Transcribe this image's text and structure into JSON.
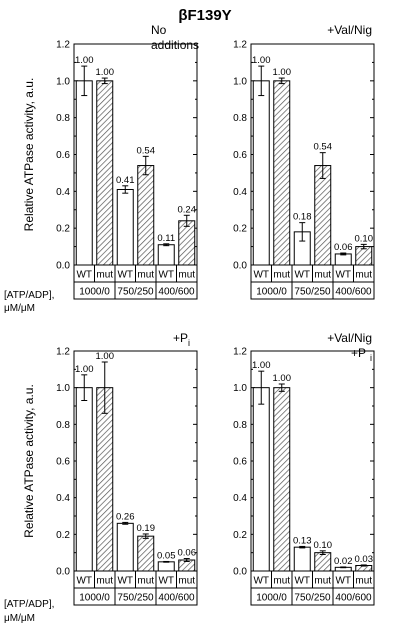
{
  "figure_title": "βF139Y",
  "row_labels": {
    "line1": "[ATP/ADP],",
    "line2": "μM/μM"
  },
  "colors": {
    "wt_fill": "#ffffff",
    "mut_hatch": "#555555",
    "stroke": "#000000"
  },
  "chart_data": [
    {
      "type": "bar",
      "annotation": [
        "No",
        "additions"
      ],
      "ylabel": "Relative ATPase activity, a.u.",
      "ylim": [
        0,
        1.2
      ],
      "yticks": [
        "0.0",
        "0.2",
        "0.4",
        "0.6",
        "0.8",
        "1.0",
        "1.2"
      ],
      "categories": [
        "WT",
        "mut",
        "WT",
        "mut",
        "WT",
        "mut"
      ],
      "groups": [
        "1000/0",
        "750/250",
        "400/600"
      ],
      "values": [
        1.0,
        1.0,
        0.41,
        0.54,
        0.11,
        0.24
      ],
      "errors": [
        0.08,
        0.015,
        0.02,
        0.05,
        0.005,
        0.03
      ],
      "labels": [
        "1.00",
        "1.00",
        "0.41",
        "0.54",
        "0.11",
        "0.24"
      ]
    },
    {
      "type": "bar",
      "annotation": [
        "+Val/Nig"
      ],
      "ylabel": "",
      "ylim": [
        0,
        1.2
      ],
      "yticks": [
        "0.0",
        "0.2",
        "0.4",
        "0.6",
        "0.8",
        "1.0",
        "1.2"
      ],
      "categories": [
        "WT",
        "mut",
        "WT",
        "mut",
        "WT",
        "mut"
      ],
      "groups": [
        "1000/0",
        "750/250",
        "400/600"
      ],
      "values": [
        1.0,
        1.0,
        0.18,
        0.54,
        0.06,
        0.1
      ],
      "errors": [
        0.08,
        0.015,
        0.05,
        0.07,
        0.005,
        0.012
      ],
      "labels": [
        "1.00",
        "1.00",
        "0.18",
        "0.54",
        "0.06",
        "0.10"
      ]
    },
    {
      "type": "bar",
      "annotation": [
        "+P",
        "i"
      ],
      "ylabel": "Relative ATPase activity, a.u.",
      "ylim": [
        0,
        1.2
      ],
      "yticks": [
        "0.0",
        "0.2",
        "0.4",
        "0.6",
        "0.8",
        "1.0",
        "1.2"
      ],
      "categories": [
        "WT",
        "mut",
        "WT",
        "mut",
        "WT",
        "mut"
      ],
      "groups": [
        "1000/0",
        "750/250",
        "400/600"
      ],
      "values": [
        1.0,
        1.0,
        0.26,
        0.19,
        0.05,
        0.06
      ],
      "errors": [
        0.07,
        0.14,
        0.005,
        0.012,
        0.002,
        0.008
      ],
      "labels": [
        "1.00",
        "1.00",
        "0.26",
        "0.19",
        "0.05",
        "0.06"
      ]
    },
    {
      "type": "bar",
      "annotation": [
        "+Val/Nig",
        "+P",
        "i"
      ],
      "ylabel": "",
      "ylim": [
        0,
        1.2
      ],
      "yticks": [
        "0.0",
        "0.2",
        "0.4",
        "0.6",
        "0.8",
        "1.0",
        "1.2"
      ],
      "categories": [
        "WT",
        "mut",
        "WT",
        "mut",
        "WT",
        "mut"
      ],
      "groups": [
        "1000/0",
        "750/250",
        "400/600"
      ],
      "values": [
        1.0,
        1.0,
        0.13,
        0.1,
        0.02,
        0.03
      ],
      "errors": [
        0.09,
        0.02,
        0.004,
        0.01,
        0.002,
        0.003
      ],
      "labels": [
        "1.00",
        "1.00",
        "0.13",
        "0.10",
        "0.02",
        "0.03"
      ]
    }
  ]
}
